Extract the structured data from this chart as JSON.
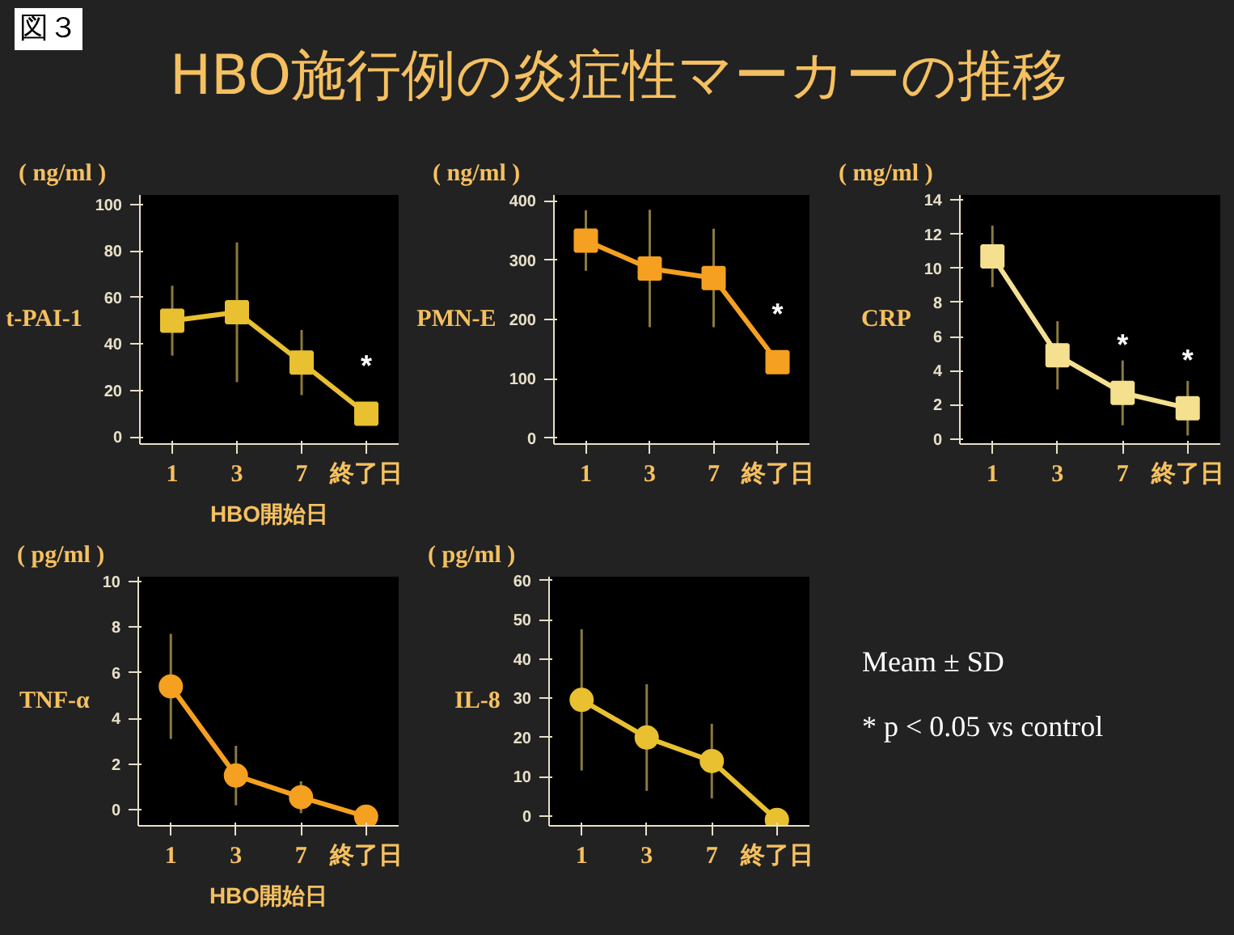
{
  "chart_data": [
    {
      "type": "other",
      "title": "HBO施行例の炎症性マーカーの推移",
      "annotations": [
        "図３"
      ]
    },
    {
      "type": "line",
      "title": "t-PAI-1",
      "ylabel": "( ng/ml )",
      "xlabel": "HBO開始日",
      "categories": [
        "1",
        "3",
        "7",
        "終了日"
      ],
      "ylim": [
        -3,
        104
      ],
      "yticks": [
        0,
        20,
        40,
        60,
        80,
        100
      ],
      "marker": "square",
      "grid": false,
      "series": [
        {
          "color": "#e8c030",
          "values": [
            50,
            53.6,
            32,
            10
          ],
          "errors": [
            15,
            30,
            14,
            null
          ]
        }
      ],
      "annotations": [
        {
          "text": "*",
          "x": "終了日",
          "y": 10
        }
      ]
    },
    {
      "type": "line",
      "title": "PMN-E",
      "ylabel": "( ng/ml )",
      "categories": [
        "1",
        "3",
        "7",
        "終了日"
      ],
      "ylim": [
        -10,
        410
      ],
      "yticks": [
        0,
        100,
        200,
        300,
        400
      ],
      "marker": "square",
      "grid": false,
      "series": [
        {
          "color": "#f5a020",
          "values": [
            333,
            286,
            270,
            128
          ],
          "errors": [
            51,
            99,
            83,
            null
          ]
        }
      ],
      "annotations": [
        {
          "text": "*",
          "x": "終了日",
          "y": 128
        }
      ]
    },
    {
      "type": "line",
      "title": "CRP",
      "ylabel": "( mg/ml )",
      "categories": [
        "1",
        "3",
        "7",
        "終了日"
      ],
      "ylim": [
        -0.3,
        14.3
      ],
      "yticks": [
        0,
        2,
        4,
        6,
        8,
        10,
        12,
        14
      ],
      "marker": "square",
      "grid": false,
      "series": [
        {
          "color": "#f5e090",
          "values": [
            10.7,
            4.9,
            2.7,
            1.8
          ],
          "errors": [
            1.8,
            2,
            1.9,
            1.6
          ]
        }
      ],
      "annotations": [
        {
          "text": "*",
          "x": "7",
          "y": 2.7
        },
        {
          "text": "*",
          "x": "終了日",
          "y": 1.8
        }
      ]
    },
    {
      "type": "line",
      "title": "TNF-α",
      "ylabel": "( pg/ml )",
      "xlabel": "HBO開始日",
      "categories": [
        "1",
        "3",
        "7",
        "終了日"
      ],
      "ylim": [
        -0.7,
        10.2
      ],
      "yticks": [
        0,
        2,
        4,
        6,
        8,
        10
      ],
      "marker": "circle",
      "grid": false,
      "series": [
        {
          "color": "#f5a020",
          "values": [
            5.4,
            1.5,
            0.55,
            -0.3
          ],
          "errors": [
            2.3,
            1.3,
            0.7,
            null
          ]
        }
      ]
    },
    {
      "type": "line",
      "title": "IL-8",
      "ylabel": "( pg/ml )",
      "categories": [
        "1",
        "3",
        "7",
        "終了日"
      ],
      "ylim": [
        -2.5,
        61
      ],
      "yticks": [
        0,
        10,
        20,
        30,
        40,
        50,
        60
      ],
      "marker": "circle",
      "grid": false,
      "series": [
        {
          "color": "#e8c030",
          "values": [
            29.6,
            20,
            14,
            -1
          ],
          "errors": [
            18,
            13.6,
            9.5,
            null
          ]
        }
      ]
    },
    {
      "type": "other",
      "annotations": [
        "Meam ± SD",
        "* p < 0.05 vs control"
      ]
    }
  ]
}
